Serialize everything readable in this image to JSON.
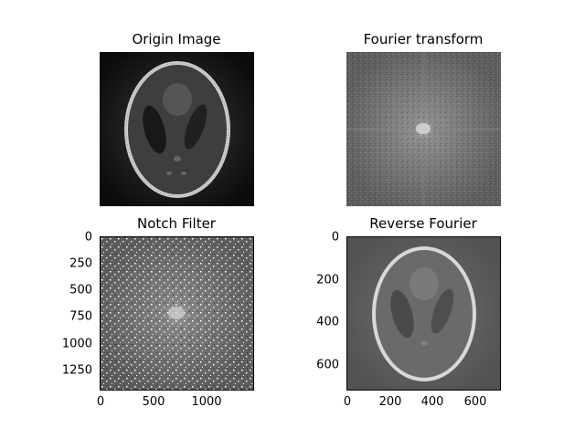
{
  "figure": {
    "panels": [
      {
        "id": "origin",
        "title": "Origin Image",
        "image": "phantom-image",
        "axes_visible": false
      },
      {
        "id": "fourier",
        "title": "Fourier transform",
        "image": "fourier-spectrum",
        "axes_visible": false
      },
      {
        "id": "notch",
        "title": "Notch Filter",
        "image": "notch-filtered-spectrum",
        "axes_visible": true,
        "yticks": [
          "0",
          "250",
          "500",
          "750",
          "1000",
          "1250"
        ],
        "xticks": [
          "0",
          "500",
          "1000"
        ]
      },
      {
        "id": "reverse",
        "title": "Reverse Fourier",
        "image": "reconstructed-phantom",
        "axes_visible": true,
        "yticks": [
          "0",
          "200",
          "400",
          "600"
        ],
        "xticks": [
          "0",
          "200",
          "400",
          "600"
        ]
      }
    ]
  }
}
